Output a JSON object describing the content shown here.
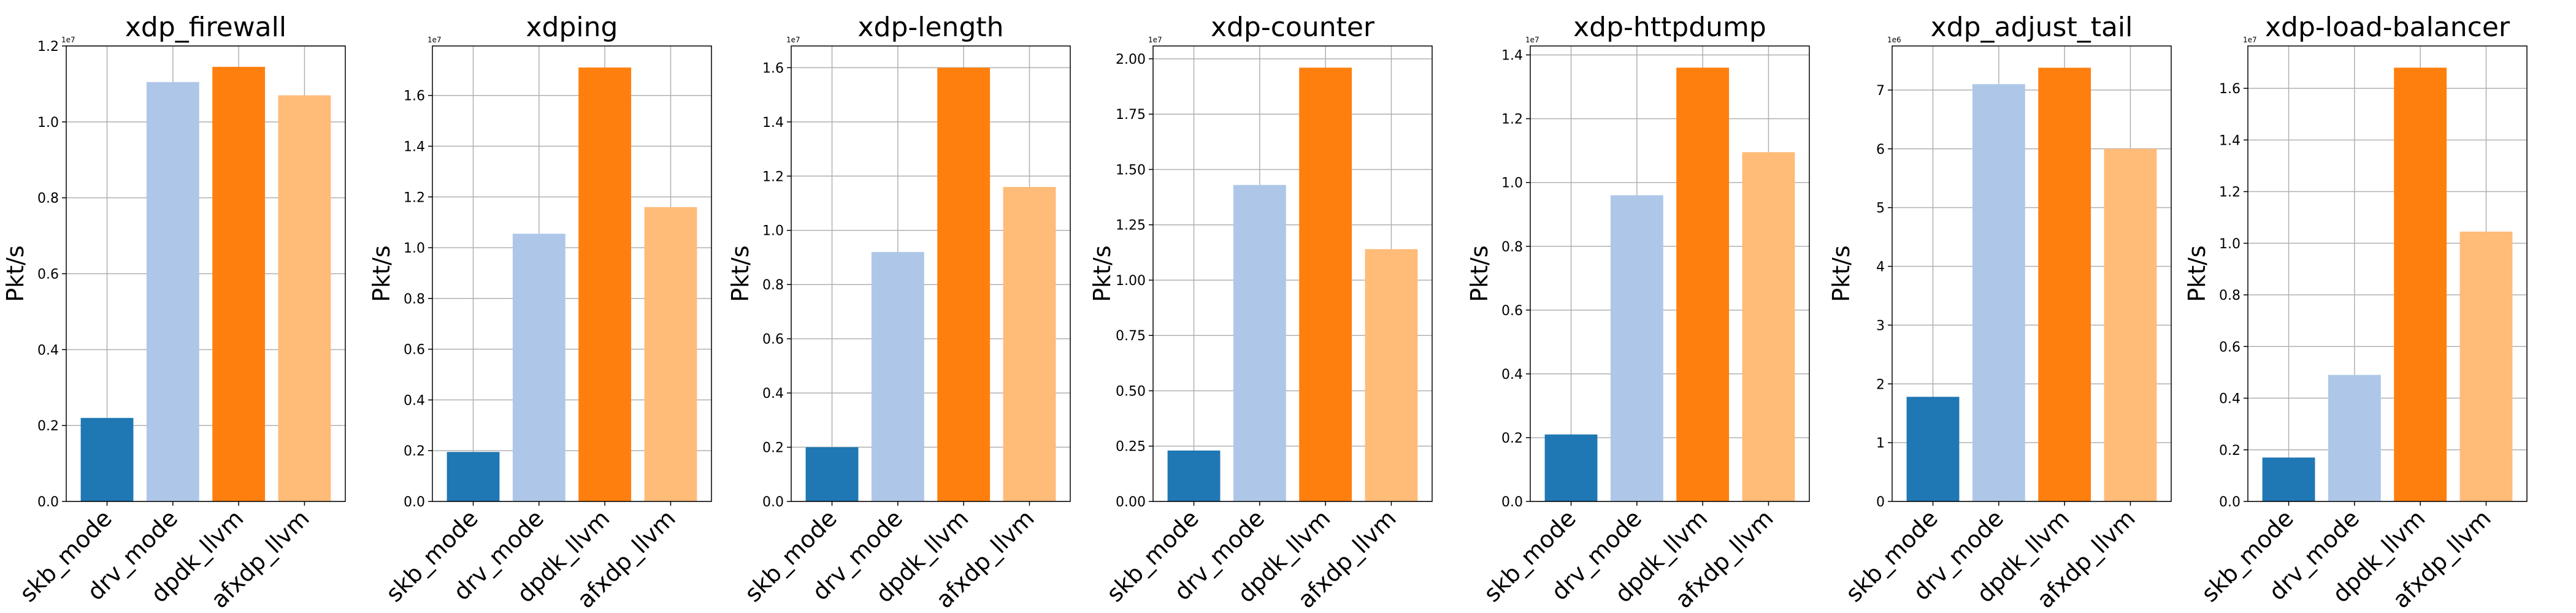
{
  "categories": [
    "skb_mode",
    "drv_mode",
    "dpdk_llvm",
    "afxdp_llvm"
  ],
  "bar_colors": [
    "#1f77b4",
    "#aec7e8",
    "#ff7f0e",
    "#ffbb78"
  ],
  "chart_data": [
    {
      "type": "bar",
      "title": "xdp_firewall",
      "ylabel": "Pkt/s",
      "offset_label": "1e7",
      "categories": [
        "skb_mode",
        "drv_mode",
        "dpdk_llvm",
        "afxdp_llvm"
      ],
      "values": [
        2200000,
        11050000,
        11450000,
        10700000
      ],
      "ylim": [
        0,
        12000000
      ],
      "yticks": [
        0,
        2000000,
        4000000,
        6000000,
        8000000,
        10000000,
        12000000
      ],
      "ytick_labels": [
        "0.0",
        "0.2",
        "0.4",
        "0.6",
        "0.8",
        "1.0",
        "1.2"
      ],
      "grid": true
    },
    {
      "type": "bar",
      "title": "xdping",
      "ylabel": "Pkt/s",
      "offset_label": "1e7",
      "categories": [
        "skb_mode",
        "drv_mode",
        "dpdk_llvm",
        "afxdp_llvm"
      ],
      "values": [
        1950000,
        10550000,
        17100000,
        11600000
      ],
      "ylim": [
        0,
        17950000
      ],
      "yticks": [
        0,
        2000000,
        4000000,
        6000000,
        8000000,
        10000000,
        12000000,
        14000000,
        16000000
      ],
      "ytick_labels": [
        "0.0",
        "0.2",
        "0.4",
        "0.6",
        "0.8",
        "1.0",
        "1.2",
        "1.4",
        "1.6"
      ],
      "grid": true
    },
    {
      "type": "bar",
      "title": "xdp-length",
      "ylabel": "Pkt/s",
      "offset_label": "1e7",
      "categories": [
        "skb_mode",
        "drv_mode",
        "dpdk_llvm",
        "afxdp_llvm"
      ],
      "values": [
        2000000,
        9200000,
        16000000,
        11600000
      ],
      "ylim": [
        0,
        16800000
      ],
      "yticks": [
        0,
        2000000,
        4000000,
        6000000,
        8000000,
        10000000,
        12000000,
        14000000,
        16000000
      ],
      "ytick_labels": [
        "0.0",
        "0.2",
        "0.4",
        "0.6",
        "0.8",
        "1.0",
        "1.2",
        "1.4",
        "1.6"
      ],
      "grid": true
    },
    {
      "type": "bar",
      "title": "xdp-counter",
      "ylabel": "Pkt/s",
      "offset_label": "1e7",
      "categories": [
        "skb_mode",
        "drv_mode",
        "dpdk_llvm",
        "afxdp_llvm"
      ],
      "values": [
        2300000,
        14300000,
        19600000,
        11400000
      ],
      "ylim": [
        0,
        20580000
      ],
      "yticks": [
        0,
        2500000,
        5000000,
        7500000,
        10000000,
        12500000,
        15000000,
        17500000,
        20000000
      ],
      "ytick_labels": [
        "0.00",
        "0.25",
        "0.50",
        "0.75",
        "1.00",
        "1.25",
        "1.50",
        "1.75",
        "2.00"
      ],
      "grid": true
    },
    {
      "type": "bar",
      "title": "xdp-httpdump",
      "ylabel": "Pkt/s",
      "offset_label": "1e7",
      "categories": [
        "skb_mode",
        "drv_mode",
        "dpdk_llvm",
        "afxdp_llvm"
      ],
      "values": [
        2100000,
        9600000,
        13600000,
        10950000
      ],
      "ylim": [
        0,
        14280000
      ],
      "yticks": [
        0,
        2000000,
        4000000,
        6000000,
        8000000,
        10000000,
        12000000,
        14000000
      ],
      "ytick_labels": [
        "0.0",
        "0.2",
        "0.4",
        "0.6",
        "0.8",
        "1.0",
        "1.2",
        "1.4"
      ],
      "grid": true
    },
    {
      "type": "bar",
      "title": "xdp_adjust_tail",
      "ylabel": "Pkt/s",
      "offset_label": "1e6",
      "categories": [
        "skb_mode",
        "drv_mode",
        "dpdk_llvm",
        "afxdp_llvm"
      ],
      "values": [
        1780000,
        7100000,
        7380000,
        6000000
      ],
      "ylim": [
        0,
        7750000
      ],
      "yticks": [
        0,
        1000000,
        2000000,
        3000000,
        4000000,
        5000000,
        6000000,
        7000000
      ],
      "ytick_labels": [
        "0",
        "1",
        "2",
        "3",
        "4",
        "5",
        "6",
        "7"
      ],
      "grid": true
    },
    {
      "type": "bar",
      "title": "xdp-load-balancer",
      "ylabel": "Pkt/s",
      "offset_label": "1e7",
      "categories": [
        "skb_mode",
        "drv_mode",
        "dpdk_llvm",
        "afxdp_llvm"
      ],
      "values": [
        1700000,
        4900000,
        16800000,
        10450000
      ],
      "ylim": [
        0,
        17640000
      ],
      "yticks": [
        0,
        2000000,
        4000000,
        6000000,
        8000000,
        10000000,
        12000000,
        14000000,
        16000000
      ],
      "ytick_labels": [
        "0.0",
        "0.2",
        "0.4",
        "0.6",
        "0.8",
        "1.0",
        "1.2",
        "1.4",
        "1.6"
      ],
      "grid": true
    }
  ]
}
